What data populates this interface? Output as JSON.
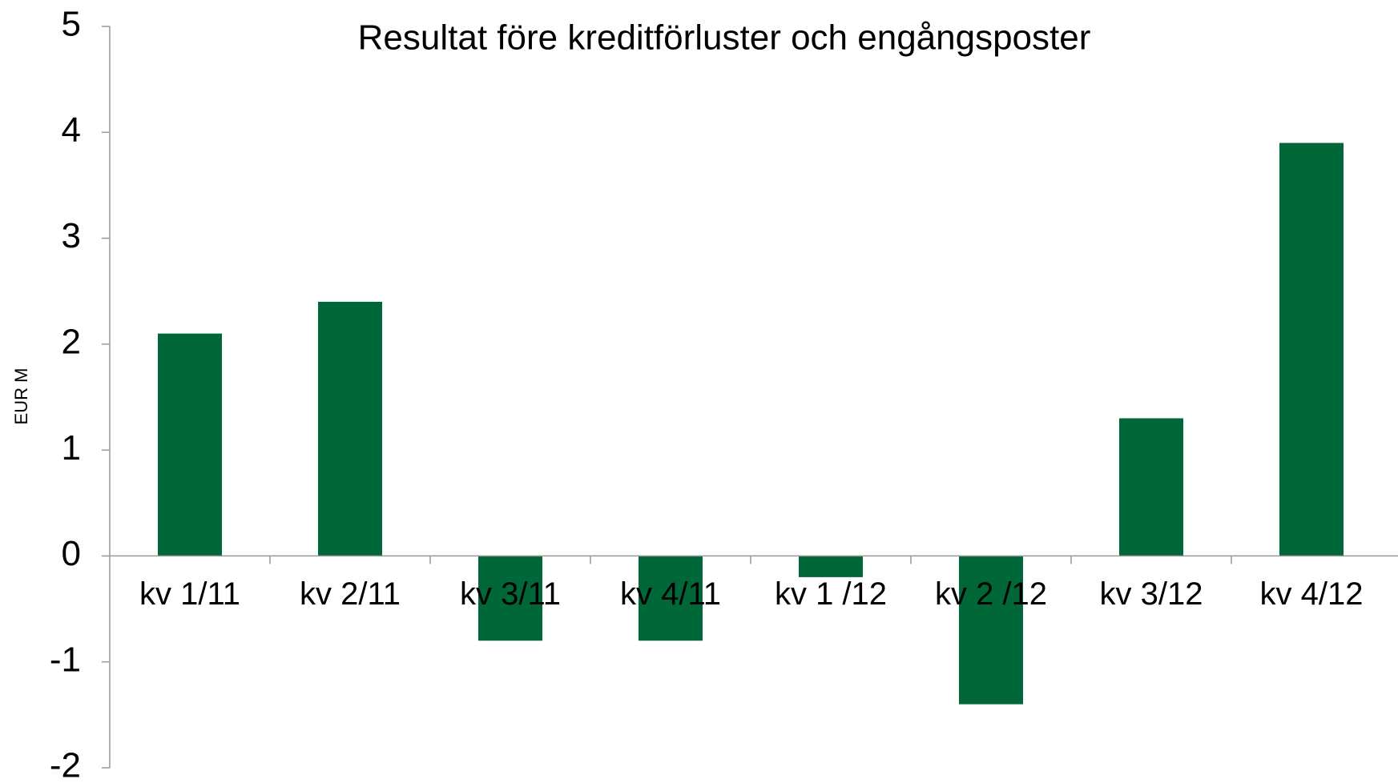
{
  "chart_data": {
    "type": "bar",
    "title": "Resultat före kreditförluster och engångsposter",
    "y_label": "EUR M",
    "categories": [
      "kv 1/11",
      "kv 2/11",
      "kv 3/11",
      "kv 4/11",
      "kv 1 /12",
      "kv 2 /12",
      "kv 3/12",
      "kv 4/12"
    ],
    "values": [
      2.1,
      2.4,
      -0.8,
      -0.8,
      -0.2,
      -1.4,
      1.3,
      3.9
    ],
    "color": "#006838",
    "ylim": [
      -2,
      5
    ],
    "yticks": [
      -2,
      -1,
      0,
      1,
      2,
      3,
      4,
      5
    ],
    "grid": false
  }
}
